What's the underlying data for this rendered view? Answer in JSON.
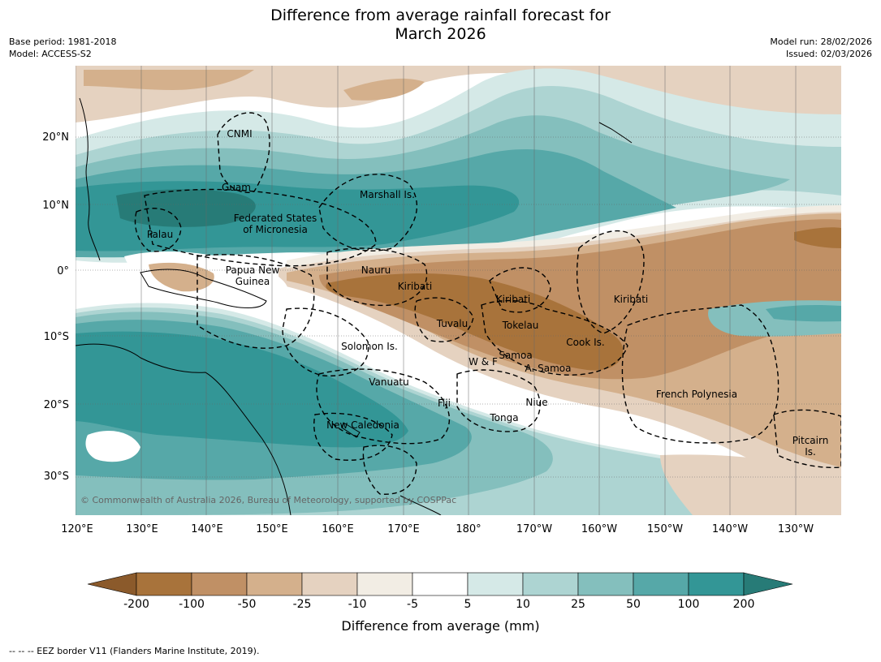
{
  "title": {
    "line1": "Difference from average rainfall forecast for",
    "line2": "March 2026"
  },
  "meta": {
    "base_period": "Base period: 1981-2018",
    "model": "Model: ACCESS-S2",
    "model_run": "Model run: 28/02/2026",
    "issued": "Issued: 02/03/2026"
  },
  "colors": {
    "dry_strongest": "#8B5A2B",
    "dry_200": "#A8733B",
    "dry_100": "#C09065",
    "dry_50": "#D4B08C",
    "dry_25": "#E5D2C0",
    "dry_10": "#F2EDE4",
    "neutral": "#FFFFFF",
    "wet_5": "#D5E9E7",
    "wet_10": "#ADD4D2",
    "wet_25": "#84BFBD",
    "wet_50": "#56A8A8",
    "wet_100": "#339696",
    "wet_strongest": "#277B77"
  },
  "map": {
    "lat_labels": [
      "20°N",
      "10°N",
      "0°",
      "10°S",
      "20°S",
      "30°S"
    ],
    "lon_labels": [
      "120°E",
      "130°E",
      "140°E",
      "150°E",
      "160°E",
      "170°E",
      "180°",
      "170°W",
      "160°W",
      "150°W",
      "140°W",
      "130°W"
    ],
    "regions": [
      "CNMI",
      "Guam",
      "Marshall Is.",
      "Federated States",
      "of Micronesia",
      "Palau",
      "Papua New",
      "Guinea",
      "Nauru",
      "Kiribati",
      "Kiribati",
      "Kiribati",
      "Tuvalu",
      "Tokelau",
      "Cook Is.",
      "Solomon Is.",
      "W & F",
      "Samoa",
      "A. Samoa",
      "Vanuatu",
      "Fiji",
      "Niue",
      "Tonga",
      "French Polynesia",
      "New Caledonia",
      "Pitcairn",
      "Is."
    ],
    "copyright": "© Commonwealth of Australia 2026, Bureau of Meteorology, supported by COSPPac"
  },
  "colorbar": {
    "ticks": [
      "-200",
      "-100",
      "-50",
      "-25",
      "-10",
      "-5",
      "5",
      "10",
      "25",
      "50",
      "100",
      "200"
    ],
    "title": "Difference from average (mm)"
  },
  "footer": "-- -- -- EEZ border V11 (Flanders Marine Institute, 2019)."
}
